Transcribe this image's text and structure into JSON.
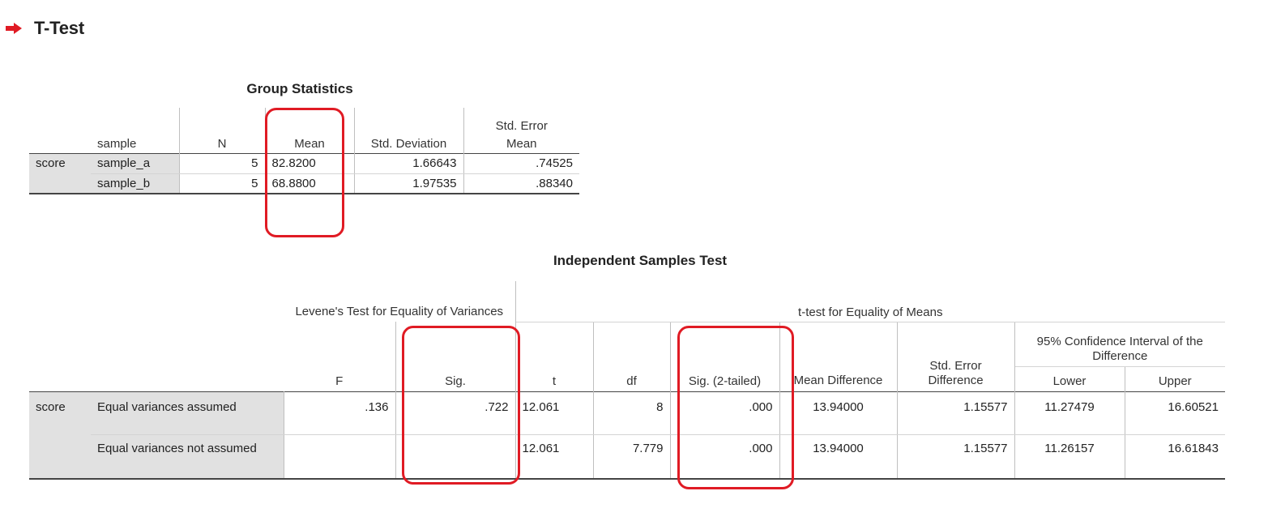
{
  "heading": {
    "title": "T-Test",
    "icon": "red-arrow-icon",
    "icon_color": "#e01b24"
  },
  "group_stats": {
    "title": "Group Statistics",
    "headers": {
      "sample": "sample",
      "n": "N",
      "mean": "Mean",
      "std_dev": "Std. Deviation",
      "std_err_l1": "Std. Error",
      "std_err_l2": "Mean"
    },
    "variable": "score",
    "rows": [
      {
        "sample": "sample_a",
        "n": "5",
        "mean": "82.8200",
        "std_dev": "1.66643",
        "std_err": ".74525"
      },
      {
        "sample": "sample_b",
        "n": "5",
        "mean": "68.8800",
        "std_dev": "1.97535",
        "std_err": ".88340"
      }
    ]
  },
  "ind_test": {
    "title": "Independent Samples Test",
    "levene_header": "Levene's Test for Equality of Variances",
    "ttest_header": "t-test for Equality of Means",
    "ci_header": "95% Confidence Interval of the Difference",
    "cols": {
      "f": "F",
      "sig": "Sig.",
      "t": "t",
      "df": "df",
      "sig2": "Sig. (2-tailed)",
      "mean_diff": "Mean Difference",
      "se_diff": "Std. Error Difference",
      "lower": "Lower",
      "upper": "Upper"
    },
    "variable": "score",
    "rows": [
      {
        "label": "Equal variances assumed",
        "f": ".136",
        "sig": ".722",
        "t": "12.061",
        "df": "8",
        "sig2": ".000",
        "mean_diff": "13.94000",
        "se_diff": "1.15577",
        "lower": "11.27479",
        "upper": "16.60521"
      },
      {
        "label": "Equal variances not assumed",
        "f": "",
        "sig": "",
        "t": "12.061",
        "df": "7.779",
        "sig2": ".000",
        "mean_diff": "13.94000",
        "se_diff": "1.15577",
        "lower": "11.26157",
        "upper": "16.61843"
      }
    ]
  },
  "highlight_color": "#e01b24"
}
